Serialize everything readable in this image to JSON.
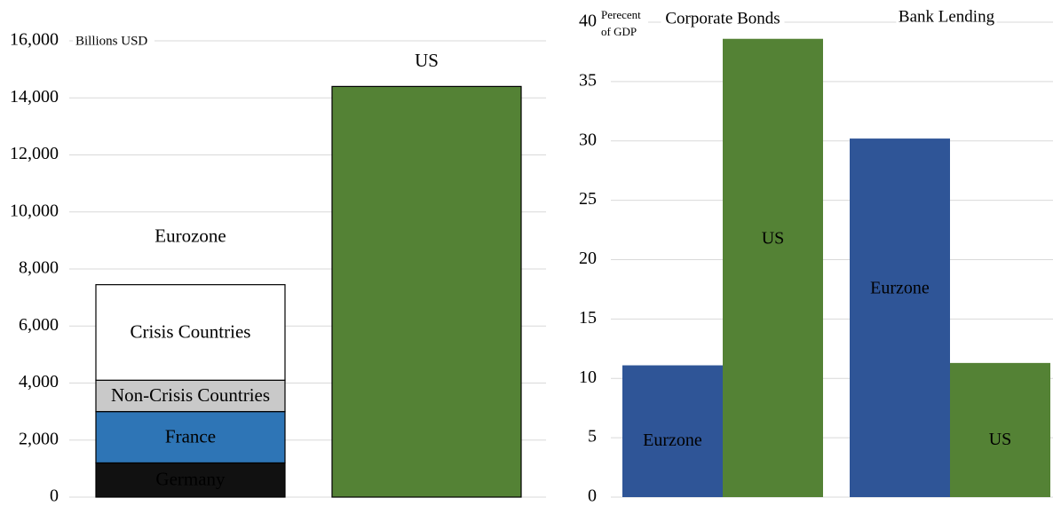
{
  "chart_data": [
    {
      "type": "bar",
      "stacked": true,
      "unit_label": "Billions USD",
      "ylim": [
        0,
        16000
      ],
      "yticks": [
        "0",
        "2,000",
        "4,000",
        "6,000",
        "8,000",
        "10,000",
        "12,000",
        "14,000",
        "16,000"
      ],
      "ytick_values": [
        0,
        2000,
        4000,
        6000,
        8000,
        10000,
        12000,
        14000,
        16000
      ],
      "grid": true,
      "bars": [
        {
          "label": "Eurozone",
          "segments": [
            {
              "name": "Germany",
              "value": 1200,
              "color": "#111111",
              "text_color": "#ffffff"
            },
            {
              "name": "France",
              "value": 1800,
              "color": "#2e75b6",
              "text_color": "#ffffff"
            },
            {
              "name": "Non-Crisis Countries",
              "value": 1100,
              "color": "#c9c9c9",
              "text_color": "#000000"
            },
            {
              "name": "Crisis Countries",
              "value": 3350,
              "color": "#ffffff",
              "text_color": "#000000"
            }
          ]
        },
        {
          "label": "US",
          "segments": [
            {
              "name": "",
              "value": 14400,
              "color": "#548235",
              "text_color": "#ffffff"
            }
          ]
        }
      ]
    },
    {
      "type": "bar",
      "unit_label": "Perecent of GDP",
      "unit_label_lines": [
        "Perecent",
        "of GDP"
      ],
      "ylim": [
        0,
        40
      ],
      "yticks": [
        "0",
        "5",
        "10",
        "15",
        "20",
        "25",
        "30",
        "35",
        "40"
      ],
      "ytick_values": [
        0,
        5,
        10,
        15,
        20,
        25,
        30,
        35,
        40
      ],
      "grid": true,
      "categories": [
        "Corporate Bonds",
        "Bank Lending"
      ],
      "groups": [
        {
          "category": "Corporate Bonds",
          "bars": [
            {
              "label": "Eurzone",
              "value": 11.1,
              "color": "#2f5597"
            },
            {
              "label": "US",
              "value": 38.6,
              "color": "#548235"
            }
          ]
        },
        {
          "category": "Bank Lending",
          "bars": [
            {
              "label": "Eurzone",
              "value": 30.2,
              "color": "#2f5597"
            },
            {
              "label": "US",
              "value": 11.3,
              "color": "#548235"
            }
          ]
        }
      ]
    }
  ]
}
